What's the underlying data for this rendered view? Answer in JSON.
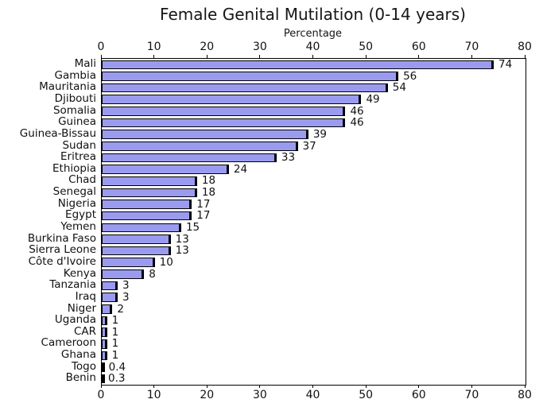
{
  "chart_data": {
    "type": "bar",
    "orientation": "horizontal",
    "title": "Female Genital Mutilation (0-14 years)",
    "xlabel": "Percentage",
    "xlabel_position": "top",
    "xlim": [
      0,
      80
    ],
    "xticks": [
      0,
      10,
      20,
      30,
      40,
      50,
      60,
      70,
      80
    ],
    "grid": false,
    "legend": "none",
    "bar_color": "#9a9bef",
    "bar_edge_color": "#000000",
    "categories": [
      "Mali",
      "Gambia",
      "Mauritania",
      "Djibouti",
      "Somalia",
      "Guinea",
      "Guinea-Bissau",
      "Sudan",
      "Eritrea",
      "Ethiopia",
      "Chad",
      "Senegal",
      "Nigeria",
      "Egypt",
      "Yemen",
      "Burkina Faso",
      "Sierra Leone",
      "Côte d'Ivoire",
      "Kenya",
      "Tanzania",
      "Iraq",
      "Niger",
      "Uganda",
      "CAR",
      "Cameroon",
      "Ghana",
      "Togo",
      "Benin"
    ],
    "values": [
      74,
      56,
      54,
      49,
      46,
      46,
      39,
      37,
      33,
      24,
      18,
      18,
      17,
      17,
      15,
      13,
      13,
      10,
      8,
      3,
      3,
      2,
      1,
      1,
      1,
      1,
      0.4,
      0.3
    ],
    "value_labels": [
      "74",
      "56",
      "54",
      "49",
      "46",
      "46",
      "39",
      "37",
      "33",
      "24",
      "18",
      "18",
      "17",
      "17",
      "15",
      "13",
      "13",
      "10",
      "8",
      "3",
      "3",
      "2",
      "1",
      "1",
      "1",
      "1",
      "0.4",
      "0.3"
    ]
  }
}
